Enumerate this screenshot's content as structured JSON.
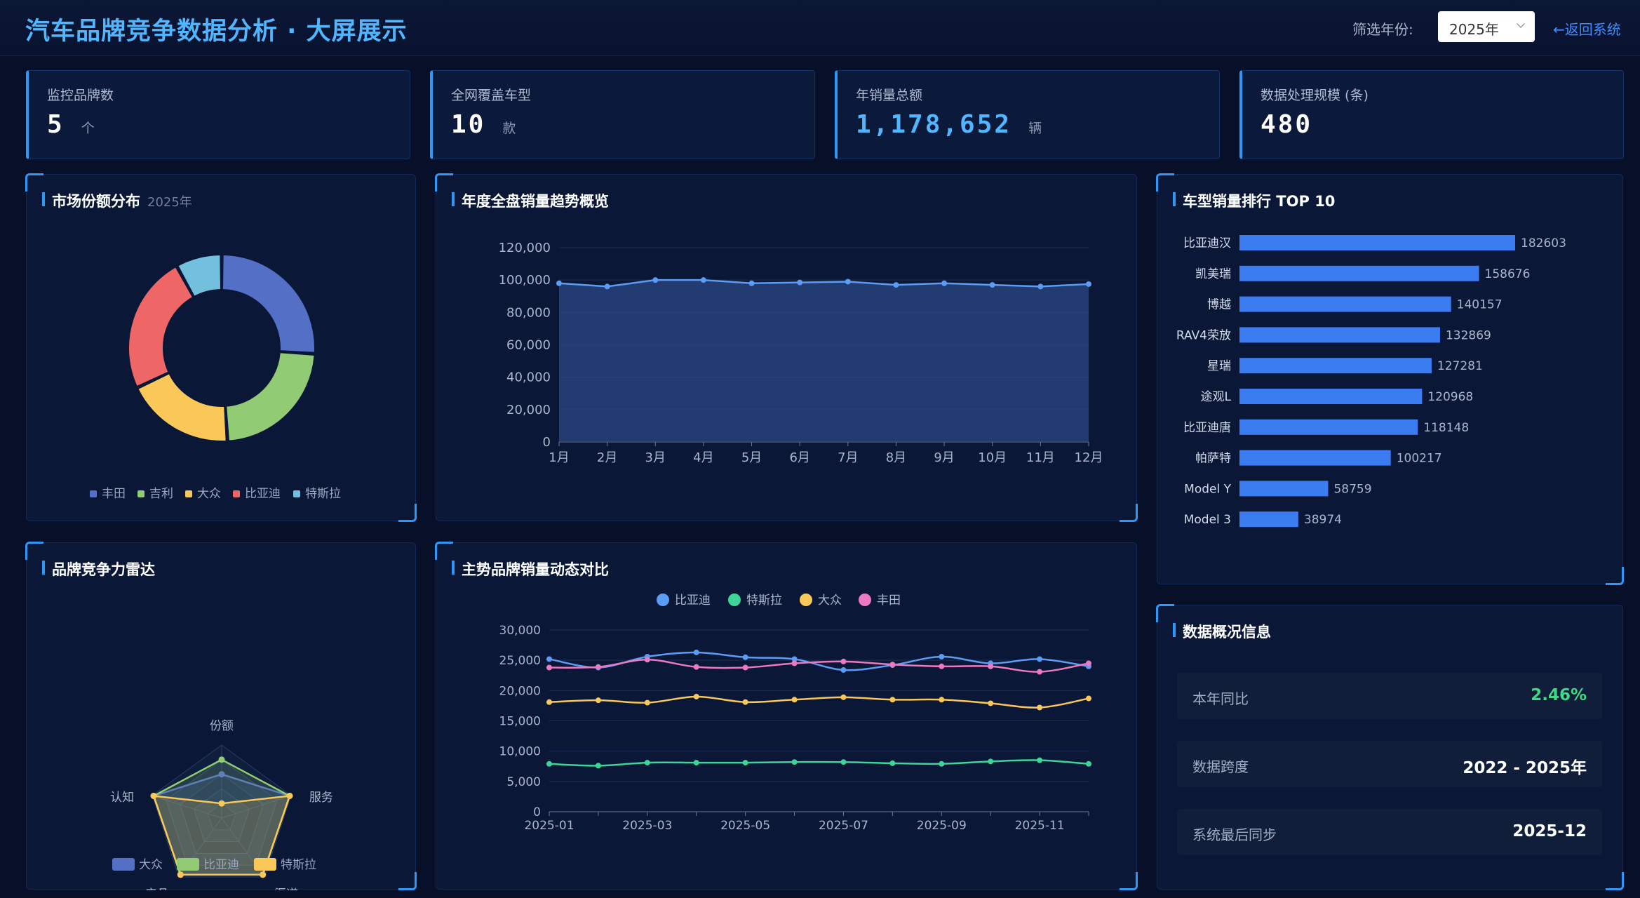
{
  "header": {
    "title": "汽车品牌竞争数据分析 · 大屏展示",
    "year_label": "筛选年份:",
    "year_value": "2025年",
    "back_label": "←返回系统"
  },
  "stats": [
    {
      "label": "监控品牌数",
      "value": "5",
      "unit": "个",
      "color": "#ffffff"
    },
    {
      "label": "全网覆盖车型",
      "value": "10",
      "unit": "款",
      "color": "#ffffff"
    },
    {
      "label": "年销量总额",
      "value": "1,178,652",
      "unit": "辆",
      "color": "#4fb6ff"
    },
    {
      "label": "数据处理规模 (条)",
      "value": "480",
      "unit": "",
      "color": "#ffffff"
    }
  ],
  "panels": {
    "market_share": {
      "title": "市场份额分布",
      "subtitle": "2025年"
    },
    "annual_trend": {
      "title": "年度全盘销量趋势概览"
    },
    "top10": {
      "title": "车型销量排行 TOP 10"
    },
    "radar": {
      "title": "品牌竞争力雷达"
    },
    "brand_compare": {
      "title": "主势品牌销量动态对比"
    },
    "info": {
      "title": "数据概况信息"
    }
  },
  "info_rows": [
    {
      "label": "本年同比",
      "value": "2.46%",
      "color": "#3ddc84"
    },
    {
      "label": "数据跨度",
      "value": "2022 - 2025年",
      "color": "#ffffff"
    },
    {
      "label": "系统最后同步",
      "value": "2025-12",
      "color": "#ffffff"
    }
  ],
  "chart_data": [
    {
      "id": "market_share",
      "type": "pie",
      "donut": true,
      "legend_position": "bottom",
      "categories": [
        "丰田",
        "吉利",
        "大众",
        "比亚迪",
        "特斯拉"
      ],
      "values": [
        26,
        23,
        19,
        24,
        8
      ],
      "colors": [
        "#5470c6",
        "#91cc75",
        "#fac858",
        "#ee6666",
        "#73c0de"
      ]
    },
    {
      "id": "annual_trend",
      "type": "area",
      "x": [
        "1月",
        "2月",
        "3月",
        "4月",
        "5月",
        "6月",
        "7月",
        "8月",
        "9月",
        "10月",
        "11月",
        "12月"
      ],
      "values": [
        98000,
        96000,
        100000,
        100000,
        98000,
        98500,
        99000,
        97000,
        98000,
        97000,
        96000,
        97500
      ],
      "ylim": [
        0,
        120000
      ],
      "yticks": [
        "0",
        "20,000",
        "40,000",
        "60,000",
        "80,000",
        "100,000",
        "120,000"
      ],
      "grid": true,
      "color": "#5b9cf5"
    },
    {
      "id": "top10",
      "type": "bar",
      "orientation": "horizontal",
      "categories": [
        "比亚迪汉",
        "凯美瑞",
        "博越",
        "RAV4荣放",
        "星瑞",
        "途观L",
        "比亚迪唐",
        "帕萨特",
        "Model Y",
        "Model 3"
      ],
      "values": [
        182603,
        158676,
        140157,
        132869,
        127281,
        120968,
        118148,
        100217,
        58759,
        38974
      ],
      "color": "#3b7cf0"
    },
    {
      "id": "radar",
      "type": "radar",
      "indicators": [
        "份额",
        "服务",
        "渠道",
        "产品",
        "认知"
      ],
      "series": [
        {
          "name": "大众",
          "values": [
            0.6,
            0.98,
            0.96,
            0.96,
            0.98
          ],
          "color": "#5470c6"
        },
        {
          "name": "比亚迪",
          "values": [
            0.8,
            0.98,
            0.96,
            0.96,
            0.98
          ],
          "color": "#91cc75"
        },
        {
          "name": "特斯拉",
          "values": [
            0.2,
            0.98,
            0.96,
            0.96,
            0.98
          ],
          "color": "#fac858"
        }
      ],
      "legend_position": "bottom"
    },
    {
      "id": "brand_compare",
      "type": "line",
      "legend_position": "top",
      "x": [
        "2025-01",
        "2025-02",
        "2025-03",
        "2025-04",
        "2025-05",
        "2025-06",
        "2025-07",
        "2025-08",
        "2025-09",
        "2025-10",
        "2025-11",
        "2025-12"
      ],
      "xticks": [
        "2025-01",
        "2025-03",
        "2025-05",
        "2025-07",
        "2025-09",
        "2025-11"
      ],
      "ylim": [
        0,
        30000
      ],
      "yticks": [
        "0",
        "5,000",
        "10,000",
        "15,000",
        "20,000",
        "25,000",
        "30,000"
      ],
      "series": [
        {
          "name": "比亚迪",
          "color": "#5b9cf5",
          "values": [
            25200,
            23800,
            25600,
            26300,
            25500,
            25200,
            23400,
            24200,
            25600,
            24500,
            25200,
            24000
          ]
        },
        {
          "name": "特斯拉",
          "color": "#3dd598",
          "values": [
            7900,
            7600,
            8100,
            8100,
            8100,
            8200,
            8200,
            8000,
            7900,
            8300,
            8500,
            7900
          ]
        },
        {
          "name": "大众",
          "color": "#fac858",
          "values": [
            18100,
            18400,
            18000,
            19000,
            18100,
            18500,
            18900,
            18500,
            18500,
            17900,
            17200,
            18700
          ]
        },
        {
          "name": "丰田",
          "color": "#ec7ac2",
          "values": [
            23800,
            23900,
            25100,
            23900,
            23800,
            24500,
            24800,
            24300,
            24000,
            24000,
            23100,
            24500
          ]
        }
      ]
    }
  ]
}
